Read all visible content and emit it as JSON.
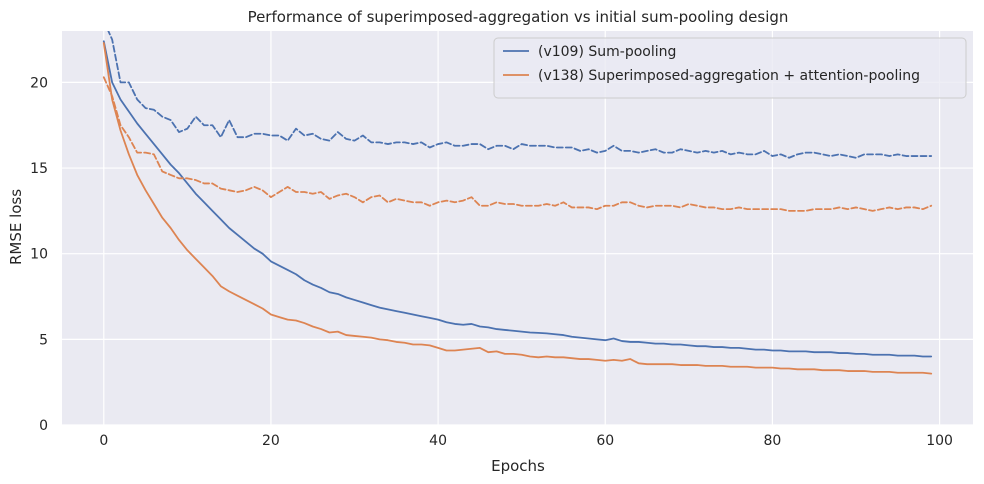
{
  "chart_data": {
    "type": "line",
    "title": "Performance of superimposed-aggregation vs initial sum-pooling design",
    "xlabel": "Epochs",
    "ylabel": "RMSE loss",
    "xlim": [
      -5,
      104
    ],
    "ylim": [
      0,
      23
    ],
    "xticks": [
      0,
      20,
      40,
      60,
      80,
      100
    ],
    "yticks": [
      0,
      5,
      10,
      15,
      20
    ],
    "grid": true,
    "legend_position": "top-right",
    "colors": {
      "background": "#eaeaf2",
      "grid": "#ffffff",
      "blue": "#4c72b0",
      "orange": "#dd8452"
    },
    "x": [
      0,
      1,
      2,
      3,
      4,
      5,
      6,
      7,
      8,
      9,
      10,
      11,
      12,
      13,
      14,
      15,
      16,
      17,
      18,
      19,
      20,
      21,
      22,
      23,
      24,
      25,
      26,
      27,
      28,
      29,
      30,
      31,
      32,
      33,
      34,
      35,
      36,
      37,
      38,
      39,
      40,
      41,
      42,
      43,
      44,
      45,
      46,
      47,
      48,
      49,
      50,
      51,
      52,
      53,
      54,
      55,
      56,
      57,
      58,
      59,
      60,
      61,
      62,
      63,
      64,
      65,
      66,
      67,
      68,
      69,
      70,
      71,
      72,
      73,
      74,
      75,
      76,
      77,
      78,
      79,
      80,
      81,
      82,
      83,
      84,
      85,
      86,
      87,
      88,
      89,
      90,
      91,
      92,
      93,
      94,
      95,
      96,
      97,
      98,
      99
    ],
    "series": [
      {
        "name": "(v109) Sum-pooling",
        "style": "solid",
        "color": "#4c72b0",
        "values": [
          22.4,
          20.0,
          19.0,
          18.3,
          17.6,
          17.0,
          16.4,
          15.8,
          15.2,
          14.7,
          14.1,
          13.5,
          13.0,
          12.5,
          12.0,
          11.5,
          11.1,
          10.7,
          10.3,
          10.0,
          9.55,
          9.3,
          9.05,
          8.8,
          8.45,
          8.2,
          8.0,
          7.75,
          7.65,
          7.45,
          7.3,
          7.15,
          7.0,
          6.85,
          6.75,
          6.65,
          6.55,
          6.45,
          6.35,
          6.25,
          6.15,
          6.0,
          5.9,
          5.85,
          5.9,
          5.75,
          5.7,
          5.6,
          5.55,
          5.5,
          5.45,
          5.4,
          5.38,
          5.35,
          5.3,
          5.25,
          5.15,
          5.1,
          5.05,
          5.0,
          4.95,
          5.05,
          4.9,
          4.85,
          4.85,
          4.8,
          4.75,
          4.75,
          4.7,
          4.7,
          4.65,
          4.6,
          4.6,
          4.55,
          4.55,
          4.5,
          4.5,
          4.45,
          4.4,
          4.4,
          4.35,
          4.35,
          4.3,
          4.3,
          4.3,
          4.25,
          4.25,
          4.25,
          4.2,
          4.2,
          4.15,
          4.15,
          4.1,
          4.1,
          4.1,
          4.05,
          4.05,
          4.05,
          4.0,
          4.0
        ]
      },
      {
        "name": "",
        "style": "dashed",
        "color": "#4c72b0",
        "values": [
          23.6,
          22.5,
          20.0,
          20.0,
          19.0,
          18.5,
          18.4,
          18.0,
          17.8,
          17.1,
          17.3,
          18.0,
          17.5,
          17.5,
          16.8,
          17.8,
          16.8,
          16.8,
          17.0,
          17.0,
          16.9,
          16.9,
          16.6,
          17.3,
          16.9,
          17.0,
          16.7,
          16.6,
          17.1,
          16.7,
          16.6,
          16.9,
          16.5,
          16.5,
          16.4,
          16.5,
          16.5,
          16.4,
          16.5,
          16.2,
          16.4,
          16.5,
          16.3,
          16.3,
          16.4,
          16.4,
          16.1,
          16.3,
          16.3,
          16.1,
          16.4,
          16.3,
          16.3,
          16.3,
          16.2,
          16.2,
          16.2,
          16.0,
          16.1,
          15.9,
          16.0,
          16.3,
          16.0,
          16.0,
          15.9,
          16.0,
          16.1,
          15.9,
          15.9,
          16.1,
          16.0,
          15.9,
          16.0,
          15.9,
          16.0,
          15.8,
          15.9,
          15.8,
          15.8,
          16.0,
          15.7,
          15.8,
          15.6,
          15.8,
          15.9,
          15.9,
          15.8,
          15.7,
          15.8,
          15.7,
          15.6,
          15.8,
          15.8,
          15.8,
          15.7,
          15.8,
          15.7,
          15.7,
          15.7,
          15.7
        ]
      },
      {
        "name": "(v138) Superimposed-aggregation + attention-pooling",
        "style": "solid",
        "color": "#dd8452",
        "values": [
          22.3,
          19.0,
          17.2,
          15.8,
          14.6,
          13.7,
          12.9,
          12.1,
          11.5,
          10.8,
          10.2,
          9.7,
          9.2,
          8.7,
          8.1,
          7.8,
          7.55,
          7.3,
          7.05,
          6.8,
          6.45,
          6.3,
          6.15,
          6.1,
          5.95,
          5.75,
          5.6,
          5.4,
          5.45,
          5.25,
          5.2,
          5.15,
          5.1,
          5.0,
          4.95,
          4.85,
          4.8,
          4.7,
          4.7,
          4.65,
          4.5,
          4.35,
          4.35,
          4.4,
          4.45,
          4.5,
          4.25,
          4.3,
          4.15,
          4.15,
          4.1,
          4.0,
          3.95,
          4.0,
          3.95,
          3.95,
          3.9,
          3.85,
          3.85,
          3.8,
          3.75,
          3.8,
          3.75,
          3.85,
          3.6,
          3.55,
          3.55,
          3.55,
          3.55,
          3.5,
          3.5,
          3.5,
          3.45,
          3.45,
          3.45,
          3.4,
          3.4,
          3.4,
          3.35,
          3.35,
          3.35,
          3.3,
          3.3,
          3.25,
          3.25,
          3.25,
          3.2,
          3.2,
          3.2,
          3.15,
          3.15,
          3.15,
          3.1,
          3.1,
          3.1,
          3.05,
          3.05,
          3.05,
          3.05,
          3.0
        ]
      },
      {
        "name": "",
        "style": "dashed",
        "color": "#dd8452",
        "values": [
          20.3,
          19.2,
          17.5,
          16.8,
          15.9,
          15.9,
          15.8,
          14.8,
          14.6,
          14.4,
          14.4,
          14.3,
          14.1,
          14.1,
          13.8,
          13.7,
          13.6,
          13.7,
          13.9,
          13.7,
          13.3,
          13.6,
          13.9,
          13.6,
          13.6,
          13.5,
          13.6,
          13.2,
          13.4,
          13.5,
          13.3,
          13.0,
          13.3,
          13.4,
          13.0,
          13.2,
          13.1,
          13.0,
          13.0,
          12.8,
          13.0,
          13.1,
          13.0,
          13.1,
          13.3,
          12.8,
          12.8,
          13.0,
          12.9,
          12.9,
          12.8,
          12.8,
          12.8,
          12.9,
          12.8,
          13.0,
          12.7,
          12.7,
          12.7,
          12.6,
          12.8,
          12.8,
          13.0,
          13.0,
          12.8,
          12.7,
          12.8,
          12.8,
          12.8,
          12.7,
          12.9,
          12.8,
          12.7,
          12.7,
          12.6,
          12.6,
          12.7,
          12.6,
          12.6,
          12.6,
          12.6,
          12.6,
          12.5,
          12.5,
          12.5,
          12.6,
          12.6,
          12.6,
          12.7,
          12.6,
          12.7,
          12.6,
          12.5,
          12.6,
          12.7,
          12.6,
          12.7,
          12.7,
          12.6,
          12.8
        ]
      }
    ]
  }
}
